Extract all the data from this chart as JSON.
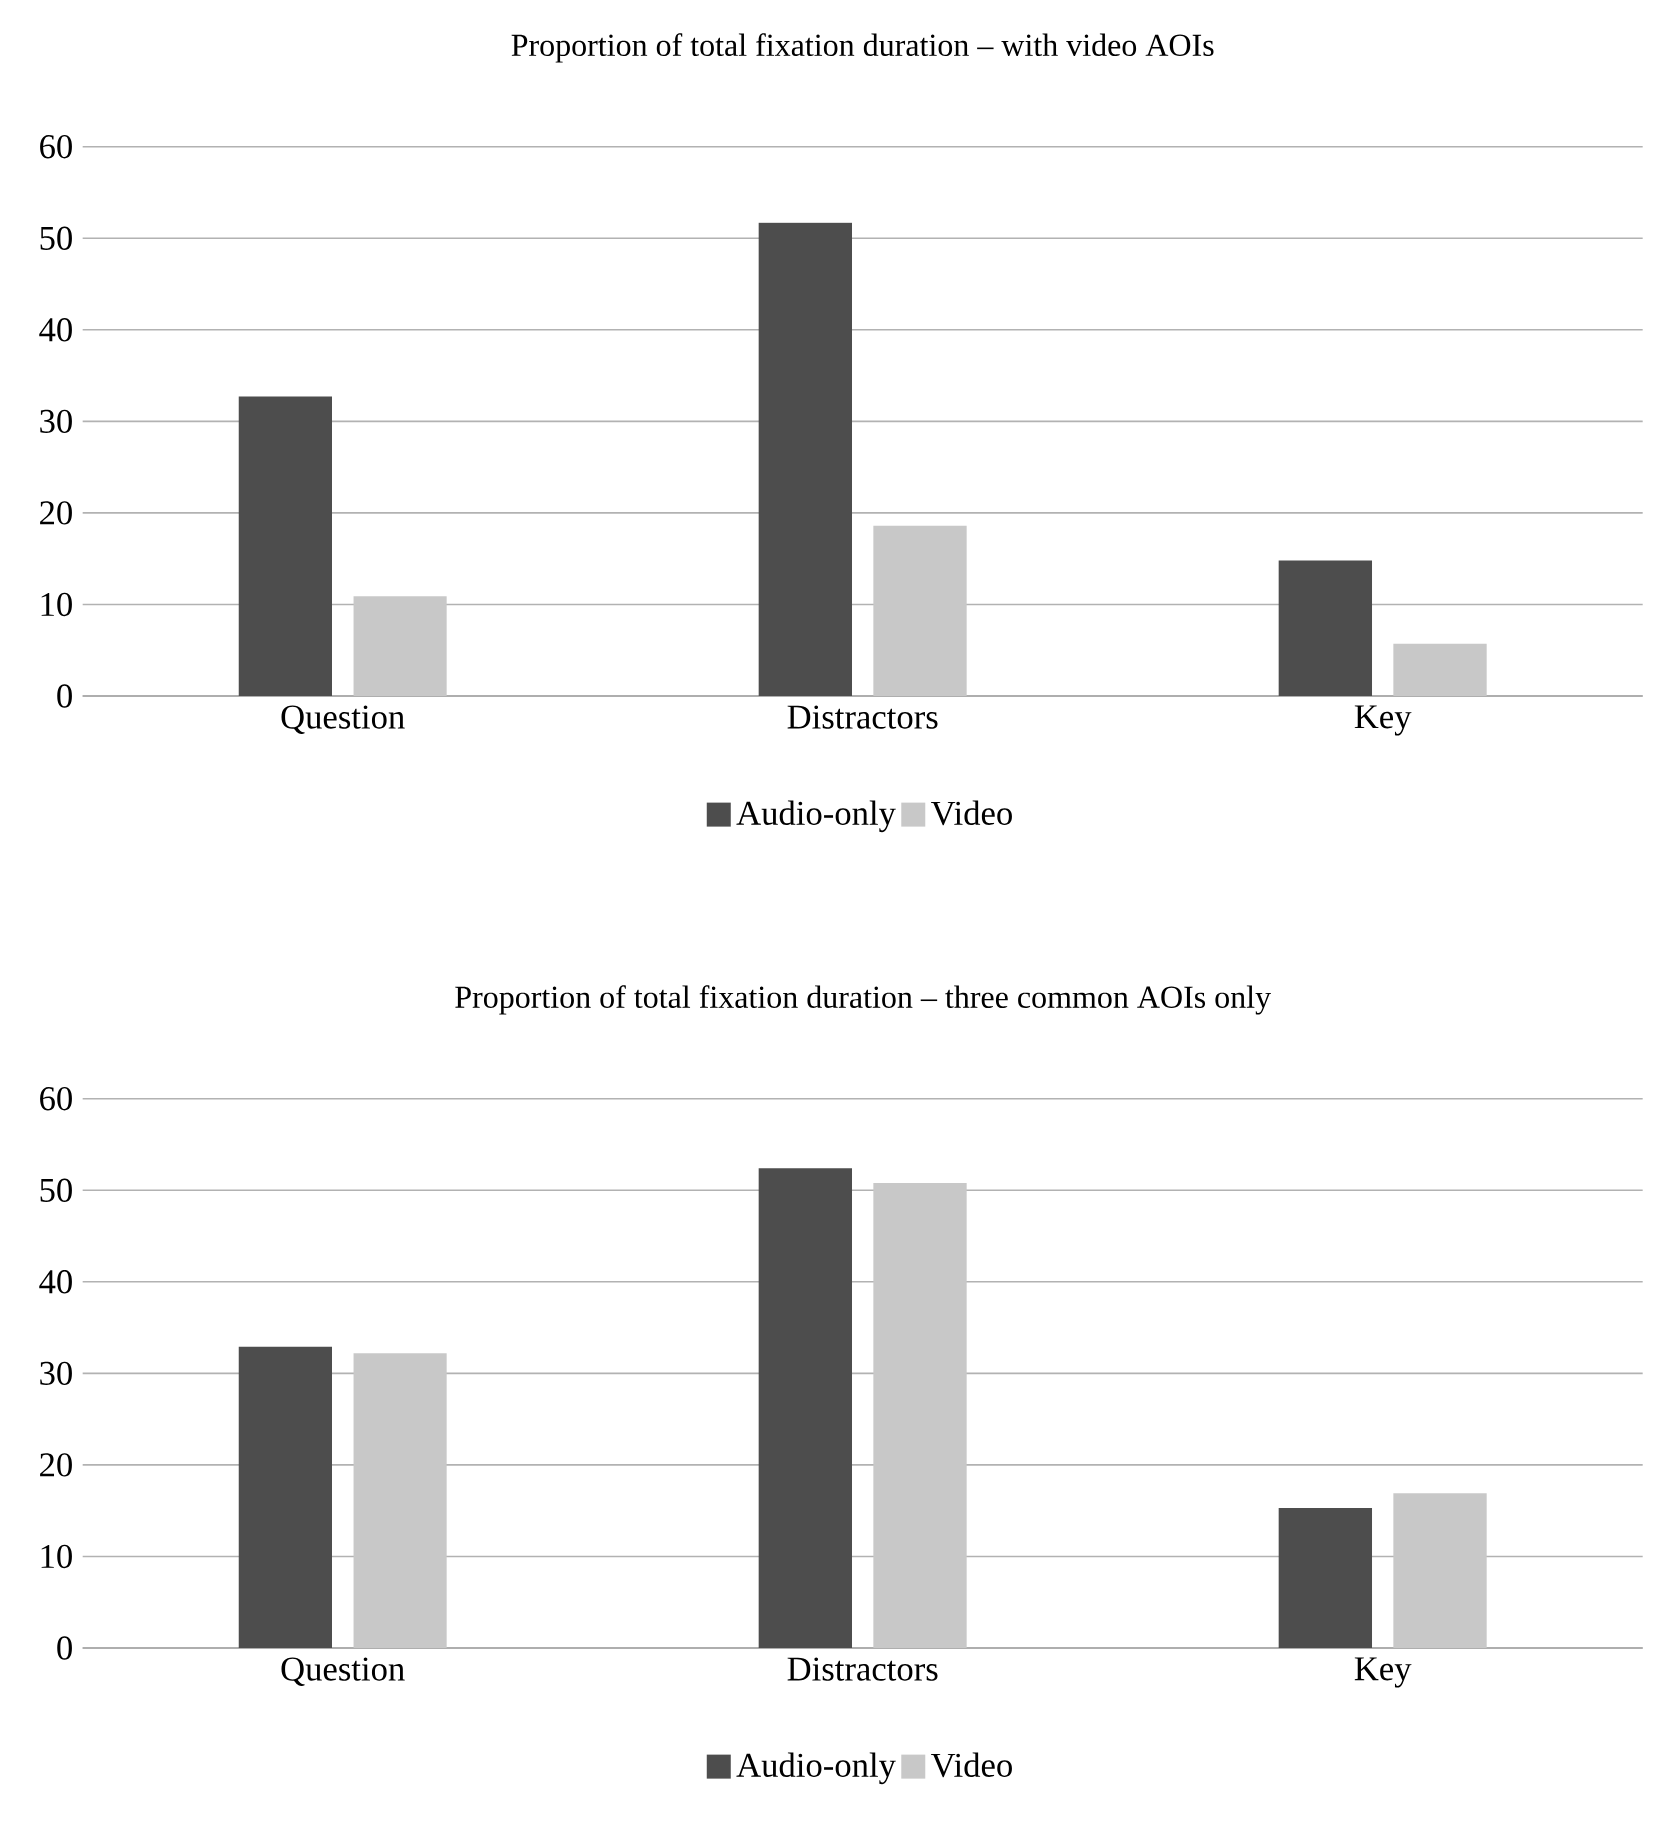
{
  "chart_data": [
    {
      "type": "bar",
      "title": "Proportion of total fixation duration – with video AOIs",
      "categories": [
        "Question",
        "Distractors",
        "Key"
      ],
      "series": [
        {
          "name": "Audio-only",
          "color": "#4d4d4d",
          "values": [
            32.7,
            51.7,
            14.8
          ]
        },
        {
          "name": "Video",
          "color": "#c8c8c8",
          "values": [
            10.9,
            18.6,
            5.7
          ]
        }
      ],
      "ylim": [
        0,
        60
      ],
      "yticks": [
        0,
        10,
        20,
        30,
        40,
        50,
        60
      ],
      "grid": "y",
      "legend": "bottom"
    },
    {
      "type": "bar",
      "title": "Proportion of total fixation duration – three common AOIs only",
      "categories": [
        "Question",
        "Distractors",
        "Key"
      ],
      "series": [
        {
          "name": "Audio-only",
          "color": "#4d4d4d",
          "values": [
            32.9,
            52.4,
            15.3
          ]
        },
        {
          "name": "Video",
          "color": "#c8c8c8",
          "values": [
            32.2,
            50.8,
            16.9
          ]
        }
      ],
      "ylim": [
        0,
        60
      ],
      "yticks": [
        0,
        10,
        20,
        30,
        40,
        50,
        60
      ],
      "grid": "y",
      "legend": "bottom"
    }
  ]
}
